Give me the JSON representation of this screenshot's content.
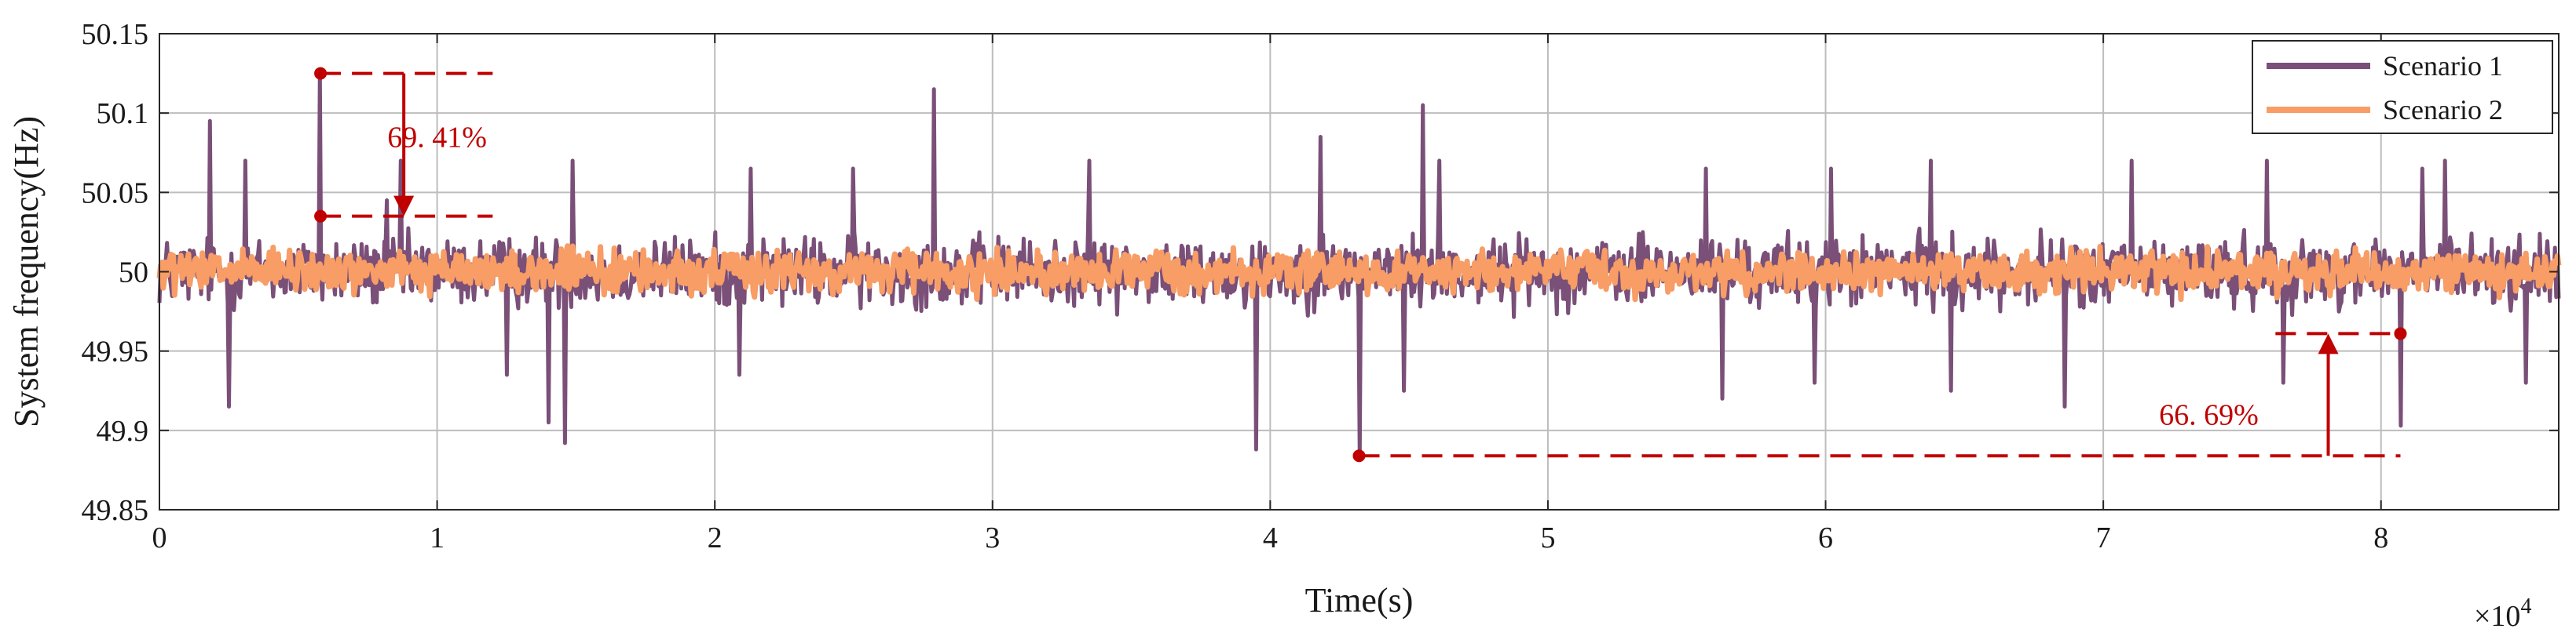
{
  "chart_data": {
    "type": "line",
    "xlabel": "Time(s)",
    "ylabel": "System frequency(Hz)",
    "x_exponent_label": "×10",
    "x_exponent_power": "4",
    "xlim": [
      0,
      86400
    ],
    "ylim": [
      49.85,
      50.15
    ],
    "x_ticks": [
      0,
      10000,
      20000,
      30000,
      40000,
      50000,
      60000,
      70000,
      80000
    ],
    "x_tick_labels": [
      "0",
      "1",
      "2",
      "3",
      "4",
      "5",
      "6",
      "7",
      "8"
    ],
    "y_ticks": [
      49.85,
      49.9,
      49.95,
      50,
      50.05,
      50.1,
      50.15
    ],
    "y_tick_labels": [
      "49.85",
      "49.9",
      "49.95",
      "50",
      "50.05",
      "50.1",
      "50.15"
    ],
    "grid": true,
    "legend_position": "top-right",
    "series": [
      {
        "name": "Scenario 1",
        "color": "#7a4f78",
        "noise_amplitude": 0.02,
        "spikes": [
          {
            "x": 1800,
            "y": 50.095
          },
          {
            "x": 2500,
            "y": 49.915
          },
          {
            "x": 3100,
            "y": 50.07
          },
          {
            "x": 5800,
            "y": 50.125
          },
          {
            "x": 8200,
            "y": 49.93
          },
          {
            "x": 8700,
            "y": 50.07
          },
          {
            "x": 8200,
            "y": 50.045
          },
          {
            "x": 12500,
            "y": 49.935
          },
          {
            "x": 14000,
            "y": 49.905
          },
          {
            "x": 14600,
            "y": 49.892
          },
          {
            "x": 14900,
            "y": 50.07
          },
          {
            "x": 20900,
            "y": 49.935
          },
          {
            "x": 21300,
            "y": 50.065
          },
          {
            "x": 25000,
            "y": 50.065
          },
          {
            "x": 27900,
            "y": 50.115
          },
          {
            "x": 33500,
            "y": 50.07
          },
          {
            "x": 39500,
            "y": 49.888
          },
          {
            "x": 41800,
            "y": 50.085
          },
          {
            "x": 43200,
            "y": 49.884
          },
          {
            "x": 44800,
            "y": 49.925
          },
          {
            "x": 45500,
            "y": 50.105
          },
          {
            "x": 46100,
            "y": 50.07
          },
          {
            "x": 55700,
            "y": 50.065
          },
          {
            "x": 56300,
            "y": 49.92
          },
          {
            "x": 59600,
            "y": 49.93
          },
          {
            "x": 60200,
            "y": 50.065
          },
          {
            "x": 63800,
            "y": 50.07
          },
          {
            "x": 64500,
            "y": 49.925
          },
          {
            "x": 68600,
            "y": 49.915
          },
          {
            "x": 71000,
            "y": 50.07
          },
          {
            "x": 75900,
            "y": 50.07
          },
          {
            "x": 76500,
            "y": 49.93
          },
          {
            "x": 80700,
            "y": 49.903
          },
          {
            "x": 81500,
            "y": 50.065
          },
          {
            "x": 82300,
            "y": 50.07
          },
          {
            "x": 85200,
            "y": 49.93
          }
        ]
      },
      {
        "name": "Scenario 2",
        "color": "#f79d65",
        "noise_amplitude": 0.012
      }
    ],
    "annotations": [
      {
        "label": "69. 41%",
        "color": "#c00000",
        "high": {
          "x": 5800,
          "y": 50.125
        },
        "low": {
          "x": 5800,
          "y": 50.035
        },
        "dash_end_x": 12000,
        "arrow_x": 8800,
        "text_pos": {
          "x": 10000,
          "y": 50.085
        }
      },
      {
        "label": "66. 69%",
        "color": "#c00000",
        "high": {
          "x": 80700,
          "y": 49.961
        },
        "low": {
          "x": 43200,
          "y": 49.884
        },
        "dash_end_x": 80700,
        "dash_start_x_high": 76200,
        "arrow_x": 78100,
        "text_pos": {
          "x": 73800,
          "y": 49.91
        }
      }
    ]
  }
}
